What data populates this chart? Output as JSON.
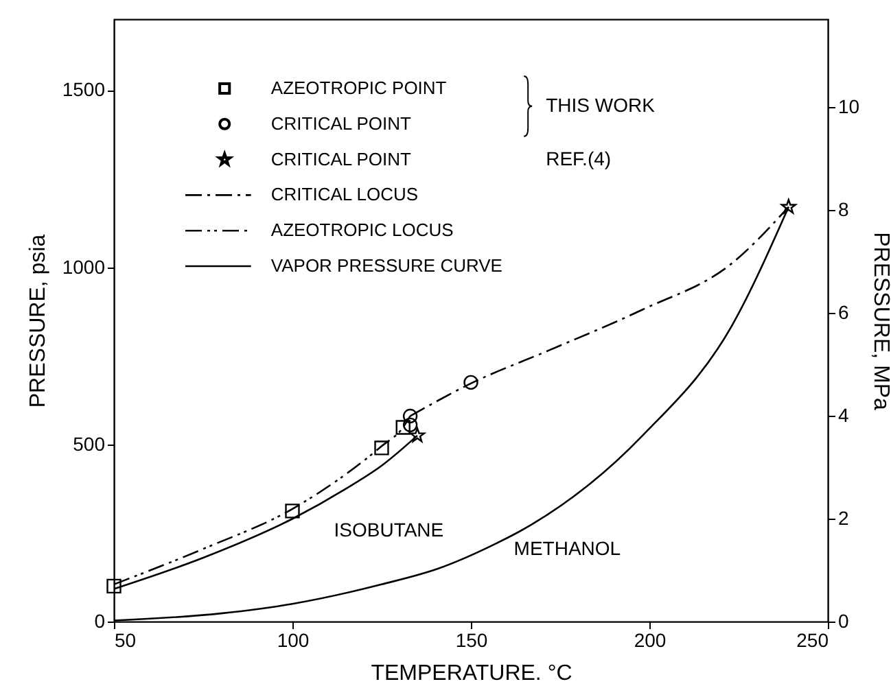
{
  "chart_data": {
    "type": "scatter",
    "xlabel": "TEMPERATURE. °C",
    "ylabel": "PRESSURE, psia",
    "y2label": "PRESSURE, MPa",
    "xlim": [
      50,
      250
    ],
    "xticks": [
      50,
      100,
      150,
      200,
      250
    ],
    "ylim": [
      0,
      1700
    ],
    "yticks": [
      0,
      500,
      1000,
      1500
    ],
    "y2lim": [
      0,
      11.7
    ],
    "y2ticks": [
      0,
      2,
      4,
      6,
      8,
      10
    ],
    "grid": false,
    "legend": "top left",
    "series": [
      {
        "name": "AZEOTROPIC POINT",
        "marker": "square",
        "color": "#000000",
        "x": [
          50,
          100,
          125,
          131
        ],
        "values": [
          100,
          312,
          490,
          548
        ]
      },
      {
        "name": "CRITICAL POINT",
        "marker": "circle",
        "color": "#000000",
        "x": [
          133,
          133,
          150
        ],
        "values": [
          580,
          555,
          675
        ]
      },
      {
        "name": "CRITICAL POINT",
        "marker": "star",
        "color": "#000000",
        "x": [
          135,
          239
        ],
        "values": [
          525,
          1170
        ]
      },
      {
        "name": "CRITICAL LOCUS",
        "type": "line",
        "line_style": "dashdot",
        "color": "#000000",
        "x": [
          133,
          150,
          172,
          198,
          223,
          239
        ],
        "values": [
          580,
          672,
          766,
          880,
          1010,
          1170
        ]
      },
      {
        "name": "AZEOTROPIC LOCUS",
        "type": "line",
        "line_style": "dashdotdot",
        "color": "#000000",
        "x": [
          50,
          75,
          100,
          125,
          131,
          133
        ],
        "values": [
          105,
          205,
          318,
          495,
          548,
          580
        ]
      },
      {
        "name": "VAPOR PRESSURE CURVE",
        "type": "line",
        "line_style": "solid",
        "color": "#000000",
        "x": [
          50,
          75,
          100,
          115,
          125,
          135
        ],
        "values": [
          92,
          180,
          290,
          375,
          440,
          525
        ]
      },
      {
        "type": "line",
        "line_style": "solid",
        "color": "#000000",
        "x": [
          50,
          80,
          100,
          125,
          141,
          157,
          165,
          198,
          223,
          239
        ],
        "values": [
          3,
          23,
          50,
          105,
          150,
          220,
          262,
          524,
          833,
          1170
        ]
      }
    ],
    "annotations": [
      "THIS WORK",
      "REF.(4)",
      "ISOBUTANE",
      "METHANOL"
    ]
  }
}
